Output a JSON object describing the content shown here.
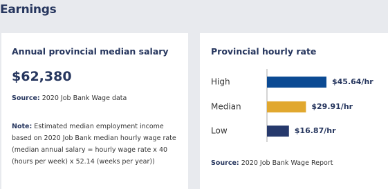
{
  "header": {
    "title": "Earnings"
  },
  "salary_card": {
    "title": "Annual provincial median salary",
    "amount": "$62,380",
    "source": {
      "label": "Source:",
      "text": "2020 Job Bank Wage data"
    },
    "note": {
      "label": "Note:",
      "text": "Estimated median employment income based on 2020 Job Bank median hourly wage rate (median annual salary = hourly wage rate x 40 (hours per week) x 52.14 (weeks per year))"
    }
  },
  "hourly_card": {
    "title": "Provincial hourly rate",
    "source": {
      "label": "Source:",
      "text": "2020 Job Bank Wage Report"
    }
  },
  "chart_data": {
    "type": "bar",
    "orientation": "horizontal",
    "categories": [
      "High",
      "Median",
      "Low"
    ],
    "values": [
      45.64,
      29.91,
      16.87
    ],
    "value_labels": [
      "$45.64/hr",
      "$29.91/hr",
      "$16.87/hr"
    ],
    "colors": [
      "#0b4a93",
      "#e1a82f",
      "#26396c"
    ]
  }
}
